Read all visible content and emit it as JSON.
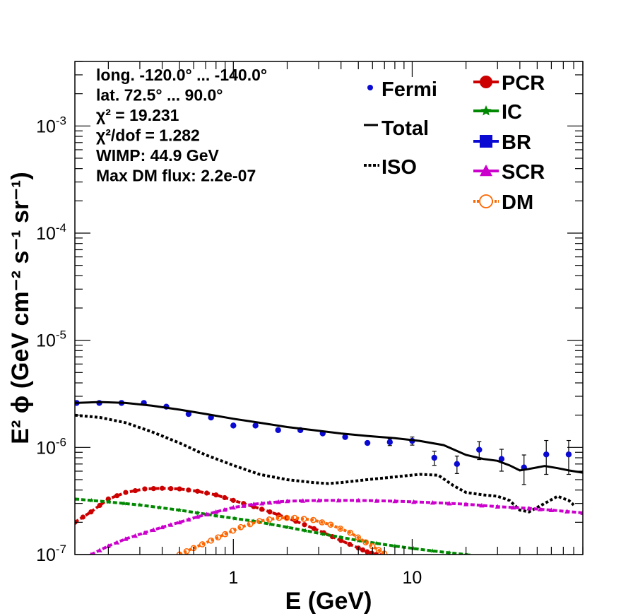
{
  "chart_data": {
    "type": "scatter",
    "title": "",
    "xlabel": "E (GeV)",
    "ylabel": "E² ϕ (GeV cm⁻² s⁻¹ sr⁻¹)",
    "xscale": "log",
    "yscale": "log",
    "xlim": [
      0.13,
      90
    ],
    "ylim": [
      1e-07,
      0.004
    ],
    "x_tick_labels": [
      {
        "value": 1,
        "label": "1"
      },
      {
        "value": 10,
        "label": "10"
      }
    ],
    "y_tick_labels": [
      {
        "value": 1e-07,
        "label": "10",
        "exp": "-7"
      },
      {
        "value": 1e-06,
        "label": "10",
        "exp": "-6"
      },
      {
        "value": 1e-05,
        "label": "10",
        "exp": "-5"
      },
      {
        "value": 0.0001,
        "label": "10",
        "exp": "-4"
      },
      {
        "value": 0.001,
        "label": "10",
        "exp": "-3"
      }
    ],
    "info_lines": [
      "long. -120.0° ... -140.0°",
      "lat. 72.5° ... 90.0°",
      "χ² = 19.231",
      "χ²/dof = 1.282",
      "WIMP: 44.9 GeV",
      "Max DM flux: 2.2e-07"
    ],
    "series": [
      {
        "name": "Fermi",
        "style": "points",
        "color": "#0a0ad2",
        "x": [
          0.133,
          0.178,
          0.237,
          0.316,
          0.422,
          0.562,
          0.75,
          1.0,
          1.33,
          1.78,
          2.37,
          3.16,
          4.22,
          5.62,
          7.5,
          10.0,
          13.3,
          17.8,
          23.7,
          31.6,
          42.2,
          56.2,
          75.0
        ],
        "y": [
          2.6e-06,
          2.6e-06,
          2.6e-06,
          2.6e-06,
          2.4e-06,
          2.05e-06,
          1.9e-06,
          1.6e-06,
          1.6e-06,
          1.45e-06,
          1.45e-06,
          1.35e-06,
          1.25e-06,
          1.1e-06,
          1.12e-06,
          1.15e-06,
          8e-07,
          7e-07,
          9.5e-07,
          7.8e-07,
          6.5e-07,
          8.6e-07,
          8.6e-07
        ],
        "y_err": [
          0,
          0,
          0,
          0,
          0,
          0,
          0,
          0,
          0,
          0,
          0,
          0,
          0,
          0,
          8e-08,
          1e-07,
          1.2e-07,
          1.3e-07,
          1.8e-07,
          1.8e-07,
          2e-07,
          3e-07,
          3e-07
        ]
      },
      {
        "name": "Total",
        "style": "solid",
        "color": "#000000",
        "x": [
          0.13,
          0.18,
          0.25,
          0.35,
          0.5,
          0.7,
          1.0,
          1.4,
          2.0,
          2.8,
          4.0,
          5.6,
          8.0,
          11.0,
          15.0,
          20.0,
          25.0,
          30.0,
          35.0,
          40.0,
          45.0,
          55.0,
          65.0,
          75.0,
          90.0
        ],
        "y": [
          2.6e-06,
          2.65e-06,
          2.6e-06,
          2.45e-06,
          2.25e-06,
          2.05e-06,
          1.85e-06,
          1.7e-06,
          1.55e-06,
          1.45e-06,
          1.35e-06,
          1.28e-06,
          1.22e-06,
          1.15e-06,
          1.05e-06,
          8.5e-07,
          7.8e-07,
          7.5e-07,
          6.8e-07,
          6.1e-07,
          6.3e-07,
          6.7e-07,
          6.4e-07,
          6.1e-07,
          5.8e-07
        ]
      },
      {
        "name": "ISO",
        "style": "dotted",
        "color": "#000000",
        "x": [
          0.13,
          0.18,
          0.25,
          0.35,
          0.5,
          0.7,
          1.0,
          1.4,
          2.0,
          2.8,
          3.4,
          4.0,
          5.6,
          8.0,
          11.0,
          14.0,
          17.0,
          20.0,
          25.0,
          30.0,
          35.0,
          40.0,
          45.0,
          55.0,
          65.0,
          75.0,
          80.0
        ],
        "y": [
          2e-06,
          1.9e-06,
          1.7e-06,
          1.4e-06,
          1.1e-06,
          8.5e-07,
          6.8e-07,
          5.6e-07,
          5e-07,
          4.7e-07,
          4.6e-07,
          4.7e-07,
          5e-07,
          5.3e-07,
          5.6e-07,
          5.5e-07,
          4.4e-07,
          3.8e-07,
          3.6e-07,
          3.5e-07,
          3.2e-07,
          2.6e-07,
          2.5e-07,
          3e-07,
          3.5e-07,
          3.2e-07,
          2.9e-07
        ]
      },
      {
        "name": "PCR",
        "style": "marker-line",
        "color": "#cc0000",
        "x": [
          0.13,
          0.16,
          0.2,
          0.25,
          0.32,
          0.4,
          0.5,
          0.63,
          0.8,
          1.0,
          1.3,
          1.6,
          2.0,
          2.5,
          3.2,
          4.0,
          5.0,
          5.6,
          6.3,
          7.1
        ],
        "y": [
          2e-07,
          2.5e-07,
          3.3e-07,
          3.8e-07,
          4.1e-07,
          4.15e-07,
          4.1e-07,
          3.9e-07,
          3.6e-07,
          3.2e-07,
          2.8e-07,
          2.5e-07,
          2.2e-07,
          1.9e-07,
          1.6e-07,
          1.35e-07,
          1.15e-07,
          1.06e-07,
          1e-07,
          9.5e-08
        ]
      },
      {
        "name": "IC",
        "style": "marker-line",
        "color": "#008800",
        "x": [
          0.13,
          0.2,
          0.3,
          0.5,
          0.8,
          1.3,
          2.0,
          3.2,
          5.0,
          8.0,
          13.0,
          20.0,
          21.0
        ],
        "y": [
          3.3e-07,
          3.1e-07,
          2.9e-07,
          2.6e-07,
          2.3e-07,
          2.05e-07,
          1.8e-07,
          1.55e-07,
          1.35e-07,
          1.2e-07,
          1.08e-07,
          1e-07,
          9.8e-08
        ]
      },
      {
        "name": "BR",
        "style": "marker-line",
        "color": "#0a0ad2",
        "x": [],
        "y": []
      },
      {
        "name": "SCR",
        "style": "marker-line",
        "color": "#cc00cc",
        "x": [
          0.16,
          0.2,
          0.25,
          0.32,
          0.4,
          0.5,
          0.63,
          0.8,
          1.0,
          1.3,
          1.6,
          2.0,
          3.0,
          5.0,
          8.0,
          13.0,
          20.0,
          30.0,
          45.0,
          60.0,
          90.0
        ],
        "y": [
          1e-07,
          1.2e-07,
          1.4e-07,
          1.6e-07,
          1.8e-07,
          2e-07,
          2.25e-07,
          2.5e-07,
          2.75e-07,
          2.95e-07,
          3.05e-07,
          3.15e-07,
          3.2e-07,
          3.2e-07,
          3.15e-07,
          3.05e-07,
          2.95e-07,
          2.8e-07,
          2.7e-07,
          2.6e-07,
          2.45e-07
        ]
      },
      {
        "name": "DM",
        "style": "marker-line-open",
        "color": "#ff6600",
        "x": [
          0.5,
          0.6,
          0.75,
          0.9,
          1.1,
          1.4,
          1.8,
          2.2,
          2.8,
          3.5,
          4.5,
          5.5,
          6.5,
          7.5
        ],
        "y": [
          1e-07,
          1.15e-07,
          1.35e-07,
          1.55e-07,
          1.8e-07,
          2.05e-07,
          2.2e-07,
          2.2e-07,
          2.1e-07,
          1.9e-07,
          1.6e-07,
          1.3e-07,
          1.1e-07,
          9.5e-08
        ]
      }
    ],
    "legend_left": [
      {
        "name": "Fermi",
        "symbol": "dot",
        "color": "#0a0ad2"
      },
      {
        "name": "Total",
        "symbol": "solid",
        "color": "#000000"
      },
      {
        "name": "ISO",
        "symbol": "dotted",
        "color": "#000000"
      }
    ],
    "legend_right": [
      {
        "name": "PCR",
        "symbol": "circle",
        "color": "#cc0000"
      },
      {
        "name": "IC",
        "symbol": "star",
        "color": "#008800"
      },
      {
        "name": "BR",
        "symbol": "square",
        "color": "#0a0ad2"
      },
      {
        "name": "SCR",
        "symbol": "triangle",
        "color": "#cc00cc"
      },
      {
        "name": "DM",
        "symbol": "open-circle",
        "color": "#ff6600"
      }
    ]
  }
}
